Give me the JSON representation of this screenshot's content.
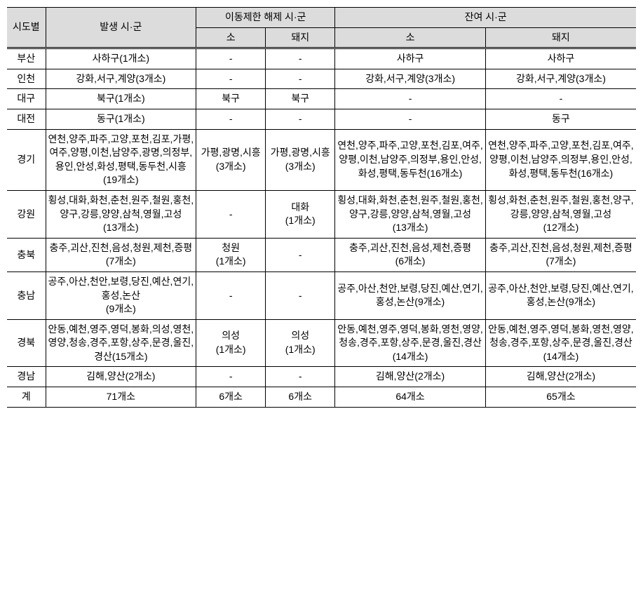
{
  "header": {
    "sido": "시도별",
    "occur": "발생 시·군",
    "lift_group": "이동제한 해제 시·군",
    "remain_group": "잔여 시·군",
    "cattle": "소",
    "pig": "돼지"
  },
  "rows": [
    {
      "sido": "부산",
      "occur": "사하구(1개소)",
      "lift_cattle": "-",
      "lift_pig": "-",
      "remain_cattle": "사하구",
      "remain_pig": "사하구"
    },
    {
      "sido": "인천",
      "occur": "강화,서구,계양(3개소)",
      "lift_cattle": "-",
      "lift_pig": "-",
      "remain_cattle": "강화,서구,계양(3개소)",
      "remain_pig": "강화,서구,계양(3개소)"
    },
    {
      "sido": "대구",
      "occur": "북구(1개소)",
      "lift_cattle": "북구",
      "lift_pig": "북구",
      "remain_cattle": "-",
      "remain_pig": "-"
    },
    {
      "sido": "대전",
      "occur": "동구(1개소)",
      "lift_cattle": "-",
      "lift_pig": "-",
      "remain_cattle": "-",
      "remain_pig": "동구"
    },
    {
      "sido": "경기",
      "occur": "연천,양주,파주,고양,포천,김포,가평,여주,양평,이천,남양주,광명,의정부,용인,안성,화성,평택,동두천,시흥(19개소)",
      "lift_cattle": "가평,광명,시흥\n(3개소)",
      "lift_pig": "가평,광명,시흥\n(3개소)",
      "remain_cattle": "연천,양주,파주,고양,포천,김포,여주,양평,이천,남양주,의정부,용인,안성,화성,평택,동두천(16개소)",
      "remain_pig": "연천,양주,파주,고양,포천,김포,여주,양평,이천,남양주,의정부,용인,안성,화성,평택,동두천(16개소)"
    },
    {
      "sido": "강원",
      "occur": "횡성,대화,화천,춘천,원주,철원,홍천,양구,강릉,양양,삼척,영월,고성\n(13개소)",
      "lift_cattle": "-",
      "lift_pig": "대화\n(1개소)",
      "remain_cattle": "횡성,대화,화천,춘천,원주,철원,홍천,양구,강릉,양양,삼척,영월,고성(13개소)",
      "remain_pig": "횡성,화천,춘천,원주,철원,홍천,양구,강릉,양양,삼척,영월,고성\n(12개소)"
    },
    {
      "sido": "충북",
      "occur": "충주,괴산,진천,음성,청원,제천,증평(7개소)",
      "lift_cattle": "청원\n(1개소)",
      "lift_pig": "-",
      "remain_cattle": "충주,괴산,진천,음성,제천,증평\n(6개소)",
      "remain_pig": "충주,괴산,진천,음성,청원,제천,증평\n(7개소)"
    },
    {
      "sido": "충남",
      "occur": "공주,아산,천안,보령,당진,예산,연기,홍성,논산\n(9개소)",
      "lift_cattle": "-",
      "lift_pig": "-",
      "remain_cattle": "공주,아산,천안,보령,당진,예산,연기,홍성,논산(9개소)",
      "remain_pig": "공주,아산,천안,보령,당진,예산,연기,홍성,논산(9개소)"
    },
    {
      "sido": "경북",
      "occur": "안동,예천,영주,영덕,봉화,의성,영천,영양,청송,경주,포항,상주,문경,울진,경산(15개소)",
      "lift_cattle": "의성\n(1개소)",
      "lift_pig": "의성\n(1개소)",
      "remain_cattle": "안동,예천,영주,영덕,봉화,영천,영양,청송,경주,포항,상주,문경,울진,경산(14개소)",
      "remain_pig": "안동,예천,영주,영덕,봉화,영천,영양,청송,경주,포항,상주,문경,울진,경산(14개소)"
    },
    {
      "sido": "경남",
      "occur": "김해,양산(2개소)",
      "lift_cattle": "-",
      "lift_pig": "-",
      "remain_cattle": "김해,양산(2개소)",
      "remain_pig": "김해,양산(2개소)"
    },
    {
      "sido": "계",
      "occur": "71개소",
      "lift_cattle": "6개소",
      "lift_pig": "6개소",
      "remain_cattle": "64개소",
      "remain_pig": "65개소"
    }
  ]
}
